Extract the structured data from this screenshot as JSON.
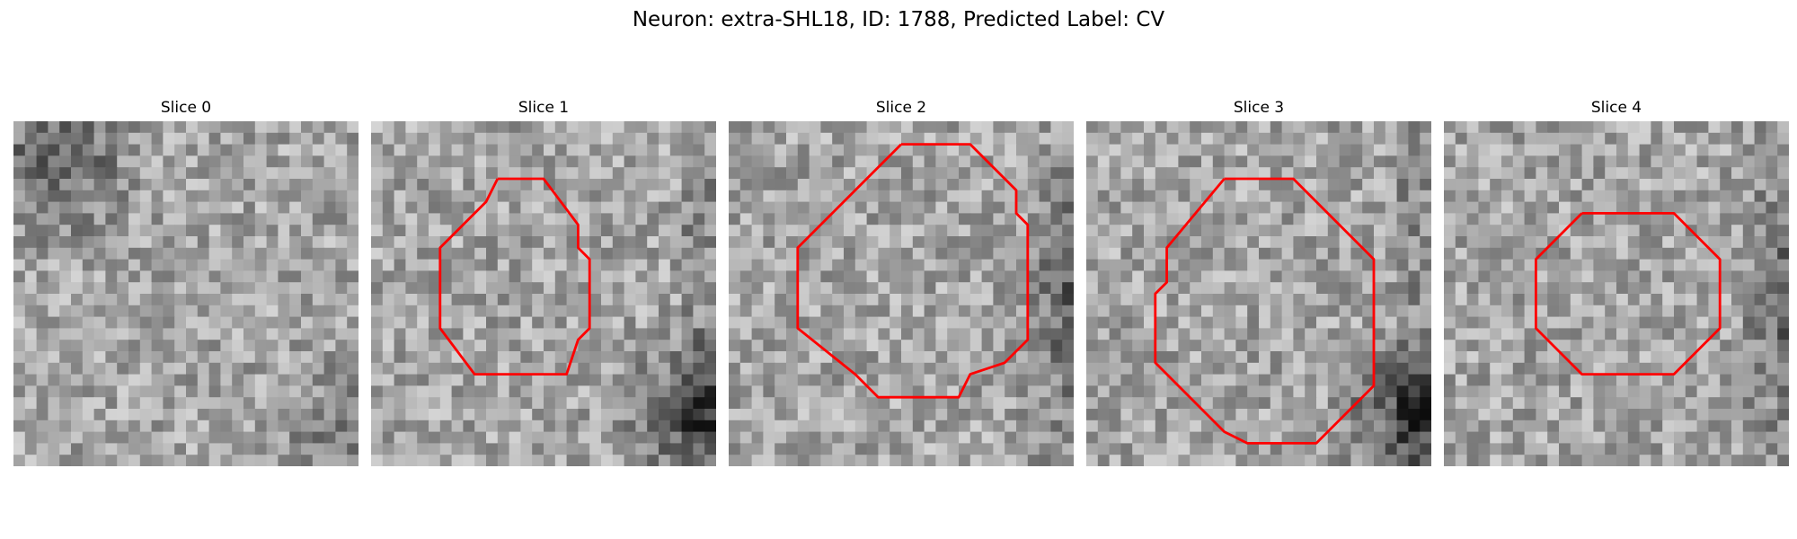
{
  "figure": {
    "title": "Neuron: extra-SHL18, ID: 1788, Predicted Label: CV"
  },
  "contour_color": "#ff0000",
  "grid_size": 30,
  "slices": [
    {
      "title": "Slice 0",
      "has_contour": false,
      "dark_region": "upper-left",
      "contour_grid": []
    },
    {
      "title": "Slice 1",
      "has_contour": true,
      "dark_region": "right-bottom",
      "contour_grid": [
        [
          11,
          5
        ],
        [
          15,
          5
        ],
        [
          18,
          9
        ],
        [
          18,
          11
        ],
        [
          19,
          12
        ],
        [
          19,
          18
        ],
        [
          18,
          19
        ],
        [
          17,
          22
        ],
        [
          9,
          22
        ],
        [
          6,
          18
        ],
        [
          6,
          11
        ],
        [
          10,
          7
        ],
        [
          11,
          5
        ]
      ]
    },
    {
      "title": "Slice 2",
      "has_contour": true,
      "dark_region": "right",
      "contour_grid": [
        [
          15,
          2
        ],
        [
          21,
          2
        ],
        [
          25,
          6
        ],
        [
          25,
          8
        ],
        [
          26,
          9
        ],
        [
          26,
          19
        ],
        [
          24,
          21
        ],
        [
          21,
          22
        ],
        [
          20,
          24
        ],
        [
          19,
          24
        ],
        [
          18,
          24
        ],
        [
          13,
          24
        ],
        [
          11,
          22
        ],
        [
          6,
          18
        ],
        [
          6,
          11
        ],
        [
          15,
          2
        ]
      ]
    },
    {
      "title": "Slice 3",
      "has_contour": true,
      "dark_region": "right-bottom",
      "contour_grid": [
        [
          12,
          5
        ],
        [
          18,
          5
        ],
        [
          25,
          12
        ],
        [
          25,
          23
        ],
        [
          20,
          28
        ],
        [
          14,
          28
        ],
        [
          12,
          27
        ],
        [
          6,
          21
        ],
        [
          6,
          15
        ],
        [
          7,
          14
        ],
        [
          7,
          11
        ],
        [
          12,
          5
        ]
      ]
    },
    {
      "title": "Slice 4",
      "has_contour": true,
      "dark_region": "right",
      "contour_grid": [
        [
          12,
          8
        ],
        [
          20,
          8
        ],
        [
          24,
          12
        ],
        [
          24,
          18
        ],
        [
          20,
          22
        ],
        [
          12,
          22
        ],
        [
          8,
          18
        ],
        [
          8,
          12
        ],
        [
          12,
          8
        ]
      ]
    }
  ]
}
